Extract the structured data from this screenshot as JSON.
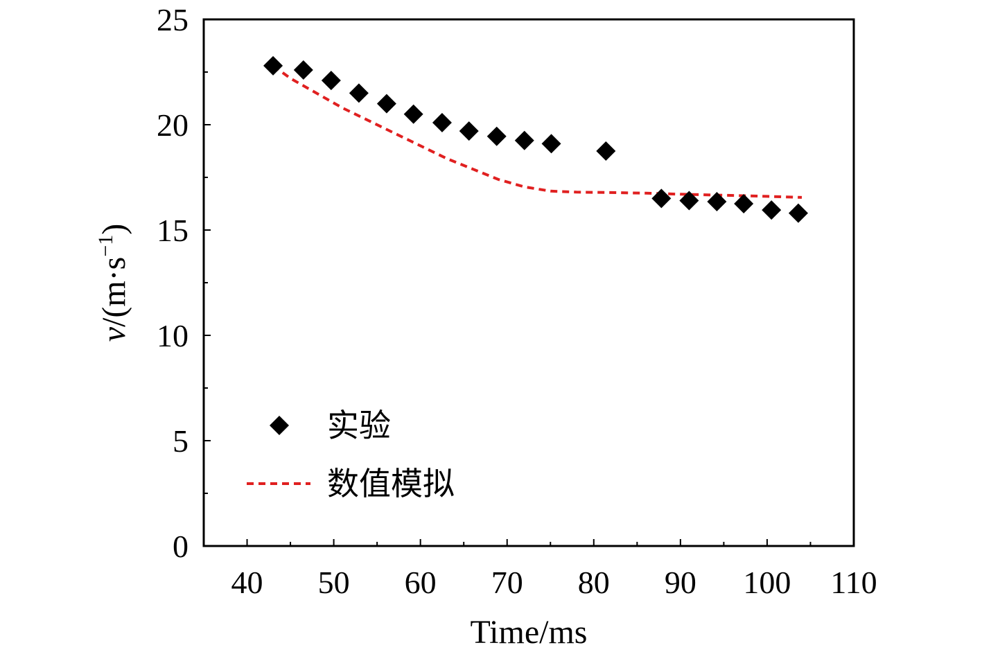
{
  "chart_data": {
    "type": "scatter",
    "xlabel": "Time/ms",
    "ylabel": {
      "var": "v",
      "pre": "/(m·s",
      "sup": "−1",
      "post": ")"
    },
    "xlim": [
      35,
      110
    ],
    "ylim": [
      0,
      25
    ],
    "xticks": [
      40,
      50,
      60,
      70,
      80,
      90,
      100,
      110
    ],
    "yticks": [
      0,
      5,
      10,
      15,
      20,
      25
    ],
    "grid": false,
    "legend": {
      "position": "bottom-left"
    },
    "series": [
      {
        "name": "实验",
        "kind": "scatter",
        "marker": "diamond",
        "color": "#000000",
        "x": [
          43.0,
          46.5,
          49.7,
          52.9,
          56.1,
          59.2,
          62.5,
          65.6,
          68.8,
          72.0,
          75.1,
          81.4,
          87.8,
          91.0,
          94.2,
          97.3,
          100.5,
          103.6
        ],
        "y": [
          22.8,
          22.6,
          22.1,
          21.5,
          21.0,
          20.5,
          20.1,
          19.7,
          19.45,
          19.25,
          19.1,
          18.75,
          16.5,
          16.4,
          16.35,
          16.25,
          15.95,
          15.8
        ]
      },
      {
        "name": "数值模拟",
        "kind": "line",
        "style": "dashed",
        "color": "#e02020",
        "x": [
          43,
          45,
          48,
          51,
          54,
          57,
          60,
          63,
          66,
          69,
          72,
          75,
          78,
          82,
          86,
          90,
          95,
          100,
          104
        ],
        "y": [
          22.8,
          22.2,
          21.5,
          20.8,
          20.2,
          19.6,
          19.0,
          18.4,
          17.9,
          17.4,
          17.05,
          16.85,
          16.8,
          16.78,
          16.75,
          16.7,
          16.65,
          16.6,
          16.55
        ]
      }
    ]
  }
}
